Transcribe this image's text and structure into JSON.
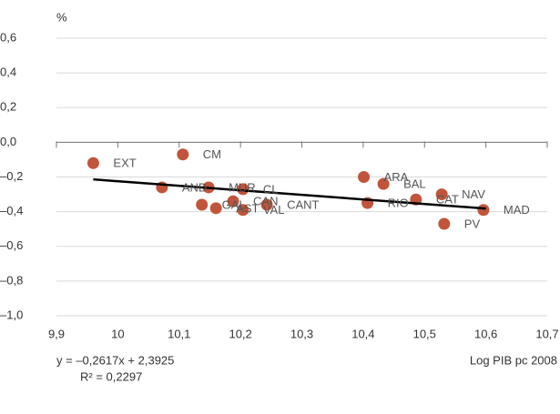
{
  "chart_data": {
    "type": "scatter",
    "y_unit": "%",
    "x_label": "Log PIB pc 2008",
    "equation": "y = –0,2617x + 2,3925",
    "r_squared": "R² = 0,2297",
    "labels": [
      "EXT",
      "CM",
      "AND",
      "MUR",
      "CL",
      "GAL",
      "AST",
      "CAN",
      "VAL",
      "CANT",
      "ARA",
      "BAL",
      "RIO",
      "CAT",
      "NAV",
      "PV",
      "MAD"
    ],
    "x": [
      9.96,
      10.106,
      10.072,
      10.148,
      10.204,
      10.137,
      10.16,
      10.188,
      10.204,
      10.243,
      10.401,
      10.433,
      10.407,
      10.486,
      10.528,
      10.532,
      10.596
    ],
    "values": [
      -0.12,
      -0.07,
      -0.26,
      -0.26,
      -0.27,
      -0.36,
      -0.38,
      -0.34,
      -0.39,
      -0.36,
      -0.2,
      -0.24,
      -0.35,
      -0.33,
      -0.3,
      -0.47,
      -0.39
    ],
    "color": "#c0553b",
    "trendline": {
      "x": [
        9.96,
        10.6
      ],
      "y": [
        -0.214,
        -0.382
      ],
      "color": "#000000"
    },
    "xlim": [
      9.9,
      10.7
    ],
    "ylim": [
      -1.0,
      0.6
    ],
    "xticks": [
      {
        "value": 9.9,
        "label": "9,9"
      },
      10,
      {
        "value": 10.1,
        "label": "10,1"
      },
      {
        "value": 10.2,
        "label": "10,2"
      },
      {
        "value": 10.3,
        "label": "10,3"
      },
      {
        "value": 10.4,
        "label": "10,4"
      },
      {
        "value": 10.5,
        "label": "10,5"
      },
      {
        "value": 10.6,
        "label": "10,6"
      },
      {
        "value": 10.7,
        "label": "10,7"
      }
    ],
    "yticks": [
      {
        "value": 0.6,
        "label": "0,6"
      },
      {
        "value": 0.4,
        "label": "0,4"
      },
      {
        "value": 0.2,
        "label": "0,2"
      },
      {
        "value": 0,
        "label": "0,0"
      },
      {
        "value": -0.2,
        "label": "–0,2"
      },
      {
        "value": -0.4,
        "label": "–0,4"
      },
      {
        "value": -0.6,
        "label": "–0,6"
      },
      {
        "value": -0.8,
        "label": "–0,8"
      },
      {
        "value": -1.0,
        "label": "–1,0"
      }
    ],
    "grid": true
  }
}
